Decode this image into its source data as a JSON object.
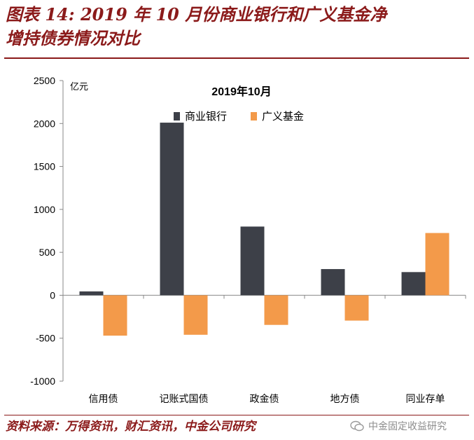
{
  "header": {
    "title_line1": "图表 14: 2019 年 10 月份商业银行和广义基金净",
    "title_line2": "增持债券情况对比"
  },
  "footer": {
    "source": "资料来源：万得资讯，财汇资讯，中金公司研究",
    "watermark": "中金固定收益研究",
    "watermark_icon": "wechat-icon"
  },
  "chart_data": {
    "type": "bar",
    "title": "2019年10月",
    "ylabel": "亿元",
    "xlabel": "",
    "ylim": [
      -1000,
      2500
    ],
    "yticks": [
      -1000,
      -500,
      0,
      500,
      1000,
      1500,
      2000,
      2500
    ],
    "categories": [
      "信用债",
      "记账式国债",
      "政金债",
      "地方债",
      "同业存单"
    ],
    "series": [
      {
        "name": "商业银行",
        "color": "#3d4048",
        "values": [
          45,
          2010,
          800,
          305,
          270
        ]
      },
      {
        "name": "广义基金",
        "color": "#f39a4a",
        "values": [
          -470,
          -460,
          -345,
          -295,
          725
        ]
      }
    ],
    "legend": "top-center",
    "grid": false
  }
}
